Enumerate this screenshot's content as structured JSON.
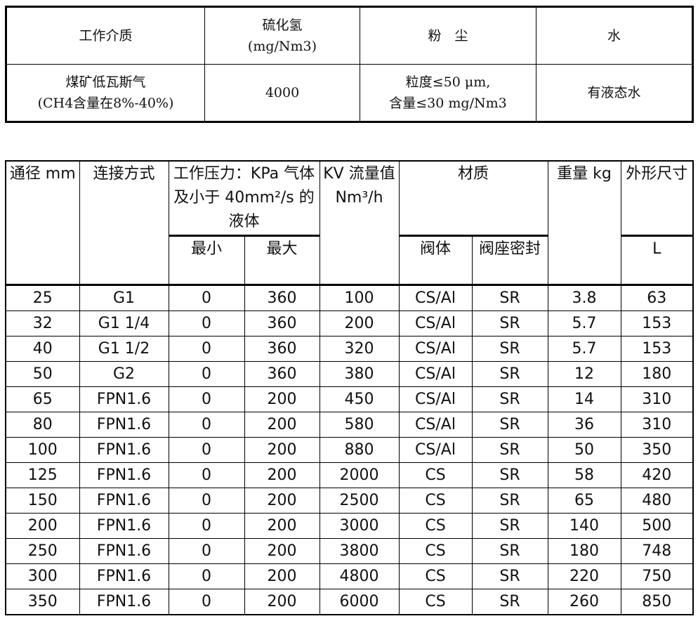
{
  "medium_table": {
    "headers": [
      "工作介质",
      "硫化氢",
      "(mg/Nm3)",
      "粉　尘",
      "水"
    ],
    "row": [
      "煤矿低瓦斯气",
      "(CH4含量在8%-40%)",
      "4000",
      "粒度≤50 μm,",
      "含量≤30 mg/Nm3",
      "有液态水"
    ]
  },
  "spec_table": {
    "headers": {
      "diameter": "通径 mm",
      "connection": "连接方式",
      "pressure": "工作压力：KPa 气体及小于 40mm²/s 的液体",
      "pmin": "最小",
      "pmax": "最大",
      "kv": "KV 流量值 Nm³/h",
      "material": "材质",
      "body": "阀体",
      "seal": "阀座密封",
      "weight": "重量 kg",
      "size": "外形尺寸",
      "L": "L"
    },
    "rows": [
      [
        "25",
        "G1",
        "0",
        "360",
        "100",
        "CS/Al",
        "SR",
        "3.8",
        "63"
      ],
      [
        "32",
        "G1 1/4",
        "0",
        "360",
        "200",
        "CS/Al",
        "SR",
        "5.7",
        "153"
      ],
      [
        "40",
        "G1 1/2",
        "0",
        "360",
        "320",
        "CS/Al",
        "SR",
        "5.7",
        "153"
      ],
      [
        "50",
        "G2",
        "0",
        "360",
        "380",
        "CS/Al",
        "SR",
        "12",
        "180"
      ],
      [
        "65",
        "FPN1.6",
        "0",
        "200",
        "450",
        "CS/Al",
        "SR",
        "14",
        "310"
      ],
      [
        "80",
        "FPN1.6",
        "0",
        "200",
        "580",
        "CS/Al",
        "SR",
        "36",
        "310"
      ],
      [
        "100",
        "FPN1.6",
        "0",
        "200",
        "880",
        "CS/Al",
        "SR",
        "50",
        "350"
      ],
      [
        "125",
        "FPN1.6",
        "0",
        "200",
        "2000",
        "CS",
        "SR",
        "58",
        "420"
      ],
      [
        "150",
        "FPN1.6",
        "0",
        "200",
        "2500",
        "CS",
        "SR",
        "65",
        "480"
      ],
      [
        "200",
        "FPN1.6",
        "0",
        "200",
        "3000",
        "CS",
        "SR",
        "140",
        "500"
      ],
      [
        "250",
        "FPN1.6",
        "0",
        "200",
        "3800",
        "CS",
        "SR",
        "180",
        "748"
      ],
      [
        "300",
        "FPN1.6",
        "0",
        "200",
        "4800",
        "CS",
        "SR",
        "220",
        "750"
      ],
      [
        "350",
        "FPN1.6",
        "0",
        "200",
        "6000",
        "CS",
        "SR",
        "260",
        "850"
      ]
    ]
  }
}
